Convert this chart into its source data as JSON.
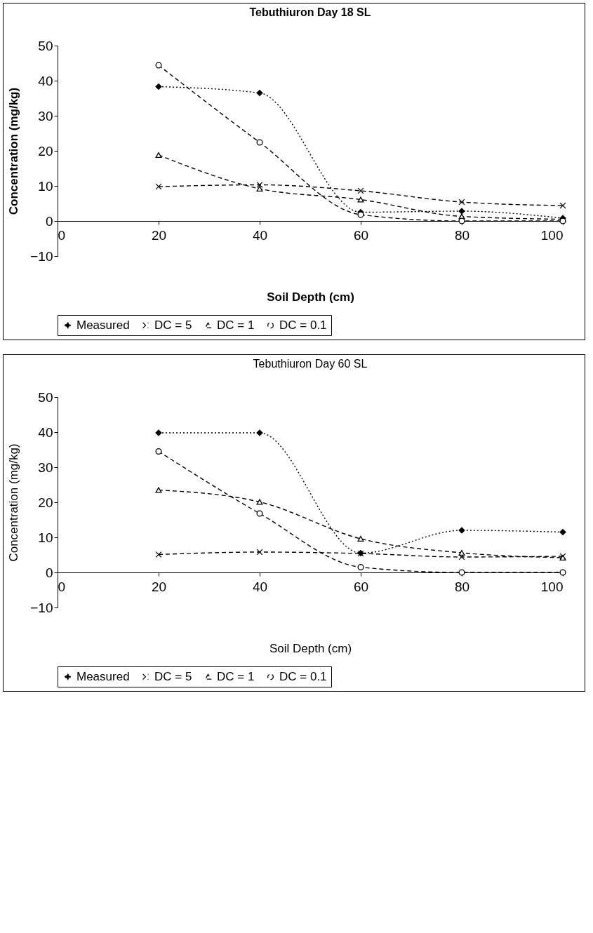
{
  "chart_data": [
    {
      "type": "line",
      "title": "Tebuthiuron Day 18 SL",
      "xlabel": "Soil Depth (cm)",
      "ylabel": "Concentration (mg/kg)",
      "x": [
        20,
        40,
        60,
        80,
        100
      ],
      "xlim": [
        0,
        100
      ],
      "xticks": [
        0,
        20,
        40,
        60,
        80,
        100
      ],
      "ylim": [
        -10,
        50
      ],
      "yticks": [
        -10,
        0,
        10,
        20,
        30,
        40,
        50
      ],
      "grid": false,
      "legend": "bottom",
      "series": [
        {
          "name": "Measured",
          "color": "#000000",
          "marker": "diamond",
          "line_style": "dotted",
          "values": [
            38.3,
            36.5,
            2.5,
            2.8,
            0.8
          ]
        },
        {
          "name": "DC = 5",
          "color": "#000000",
          "marker": "cross",
          "line_style": "dashed",
          "values": [
            9.8,
            10.3,
            8.6,
            5.4,
            4.4
          ]
        },
        {
          "name": "DC = 1",
          "color": "#000000",
          "marker": "triangle",
          "line_style": "dashed",
          "values": [
            18.8,
            9.2,
            6.1,
            1.3,
            0.5
          ]
        },
        {
          "name": "DC = 0.1",
          "color": "#000000",
          "marker": "circle",
          "line_style": "dashed",
          "values": [
            44.4,
            22.4,
            1.8,
            0,
            0
          ]
        }
      ]
    },
    {
      "type": "line",
      "title": "Tebuthiuron Day 60 SL",
      "xlabel": "Soil Depth (cm)",
      "ylabel": "Concentration (mg/kg)",
      "x": [
        20,
        40,
        60,
        80,
        100
      ],
      "xlim": [
        0,
        100
      ],
      "xticks": [
        0,
        20,
        40,
        60,
        80,
        100
      ],
      "ylim": [
        -10,
        50
      ],
      "yticks": [
        -10,
        0,
        10,
        20,
        30,
        40,
        50
      ],
      "grid": false,
      "legend": "bottom",
      "series": [
        {
          "name": "Measured",
          "color": "#000000",
          "marker": "diamond",
          "line_style": "dotted",
          "values": [
            39.8,
            39.8,
            5.5,
            12,
            11.5
          ]
        },
        {
          "name": "DC = 5",
          "color": "#000000",
          "marker": "cross",
          "line_style": "dashed",
          "values": [
            5.1,
            5.8,
            5.4,
            4.4,
            4.6
          ]
        },
        {
          "name": "DC = 1",
          "color": "#000000",
          "marker": "triangle",
          "line_style": "dashed",
          "values": [
            23.5,
            20.1,
            9.6,
            5.6,
            4.2
          ]
        },
        {
          "name": "DC = 0.1",
          "color": "#000000",
          "marker": "circle",
          "line_style": "dashed",
          "values": [
            34.5,
            16.8,
            1.5,
            0,
            0
          ]
        }
      ]
    }
  ]
}
